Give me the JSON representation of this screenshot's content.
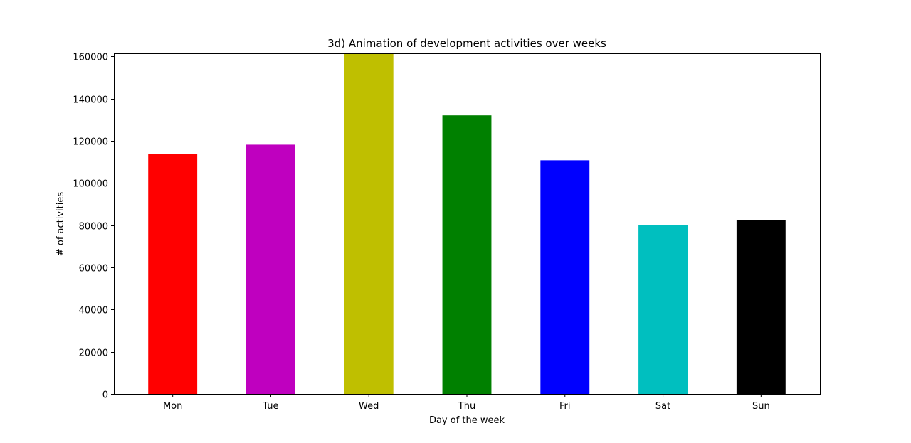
{
  "chart_data": {
    "type": "bar",
    "title": "3d) Animation of development activities over weeks",
    "xlabel": "Day of the week",
    "ylabel": "# of activities",
    "categories": [
      "Mon",
      "Tue",
      "Wed",
      "Thu",
      "Fri",
      "Sat",
      "Sun"
    ],
    "values": [
      113800,
      118200,
      161500,
      132100,
      110800,
      80100,
      82400
    ],
    "colors": [
      "#ff0000",
      "#bf00bf",
      "#bfbf00",
      "#008000",
      "#0000ff",
      "#00bfbf",
      "#000000"
    ],
    "ylim": [
      0,
      161500
    ],
    "yticks": [
      0,
      20000,
      40000,
      60000,
      80000,
      100000,
      120000,
      140000,
      160000
    ],
    "grid": false,
    "legend": "none"
  }
}
